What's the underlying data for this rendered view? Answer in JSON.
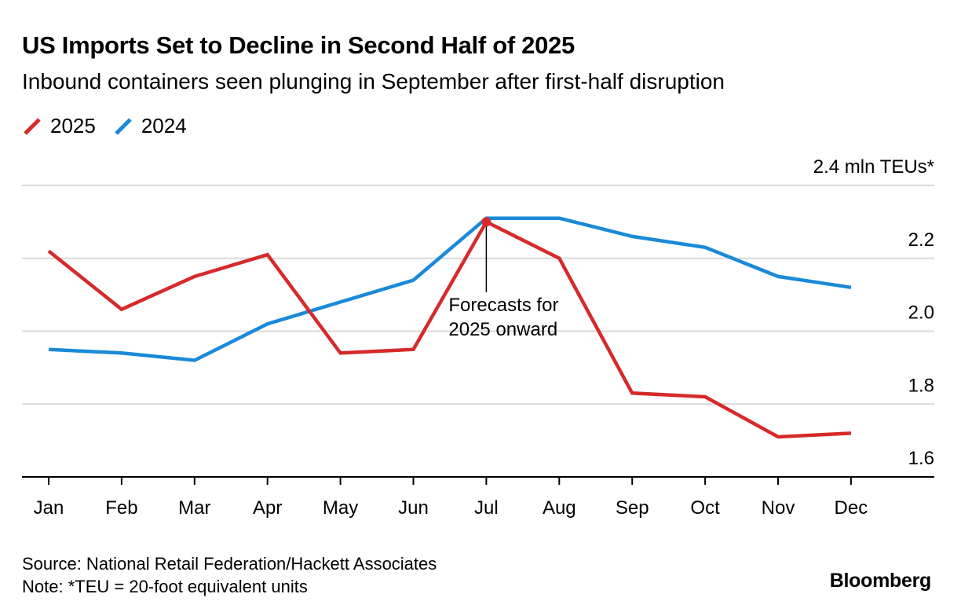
{
  "chart_data": {
    "type": "line",
    "title": "US Imports Set to Decline in Second Half of 2025",
    "subtitle": "Inbound containers seen plunging in September after first-half disruption",
    "unit_label": "2.4 mln TEUs*",
    "categories": [
      "Jan",
      "Feb",
      "Mar",
      "Apr",
      "May",
      "Jun",
      "Jul",
      "Aug",
      "Sep",
      "Oct",
      "Nov",
      "Dec"
    ],
    "series": [
      {
        "name": "2025",
        "color": "#d62a2a",
        "values": [
          2.22,
          2.06,
          2.15,
          2.21,
          1.94,
          1.95,
          2.3,
          2.2,
          1.83,
          1.82,
          1.71,
          1.72
        ]
      },
      {
        "name": "2024",
        "color": "#1a8ad8",
        "values": [
          1.95,
          1.94,
          1.92,
          2.02,
          2.08,
          2.14,
          2.31,
          2.31,
          2.26,
          2.23,
          2.15,
          2.12
        ]
      }
    ],
    "y_ticks": [
      "2.2",
      "2.0",
      "1.8",
      "1.6"
    ],
    "y_tick_values": [
      2.2,
      2.0,
      1.8,
      1.6
    ],
    "ylim": [
      1.6,
      2.4
    ],
    "grid": true,
    "legend_position": "top-left",
    "annotation": {
      "text_line1": "Forecasts for",
      "text_line2": "2025 onward",
      "category": "Jul",
      "series": "2025"
    }
  },
  "footer": {
    "source": "Source: National Retail Federation/Hackett Associates",
    "note": "Note: *TEU = 20-foot equivalent units"
  },
  "brand": "Bloomberg"
}
